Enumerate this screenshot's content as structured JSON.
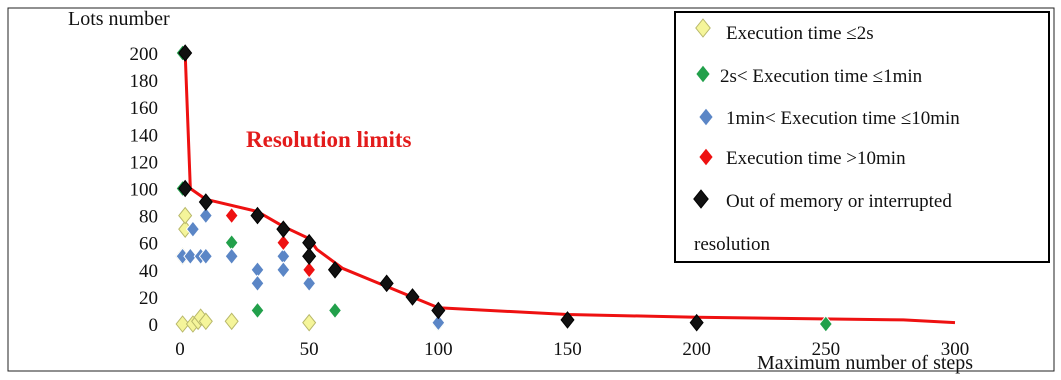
{
  "chart_data": {
    "type": "scatter",
    "title": "",
    "xlabel": "Maximum number of steps",
    "ylabel": "Lots number",
    "xlim": [
      0,
      300
    ],
    "ylim": [
      0,
      200
    ],
    "x_ticks": [
      "0",
      "50",
      "100",
      "150",
      "200",
      "250",
      "300"
    ],
    "y_ticks": [
      "0",
      "20",
      "40",
      "60",
      "80",
      "100",
      "120",
      "140",
      "160",
      "180",
      "200"
    ],
    "grid": false,
    "legend_position": "top-right",
    "annotation": "Resolution limits",
    "legend": [
      {
        "label": "Execution time ≤2s",
        "color": "#f5f59a"
      },
      {
        "label": "2s< Execution time ≤1min",
        "color": "#22a04b"
      },
      {
        "label": "1min< Execution time ≤10min",
        "color": "#5b86c6"
      },
      {
        "label": "Execution time >10min",
        "color": "#ee1111"
      },
      {
        "label": "Out of memory or interrupted",
        "label_cont": "resolution",
        "color": "#111111"
      }
    ],
    "series": [
      {
        "color": "#f5f59a",
        "points": [
          [
            1,
            0
          ],
          [
            1,
            50
          ],
          [
            2,
            70
          ],
          [
            2,
            80
          ],
          [
            5,
            0
          ],
          [
            7,
            2
          ],
          [
            8,
            5
          ],
          [
            10,
            2
          ],
          [
            20,
            2
          ],
          [
            50,
            1
          ]
        ]
      },
      {
        "color": "#22a04b",
        "points": [
          [
            1,
            200
          ],
          [
            1,
            100
          ],
          [
            20,
            60
          ],
          [
            30,
            10
          ],
          [
            60,
            10
          ],
          [
            100,
            0
          ],
          [
            250,
            0
          ]
        ]
      },
      {
        "color": "#5b86c6",
        "points": [
          [
            1,
            50
          ],
          [
            4,
            50
          ],
          [
            5,
            70
          ],
          [
            8,
            50
          ],
          [
            10,
            80
          ],
          [
            10,
            50
          ],
          [
            20,
            50
          ],
          [
            30,
            40
          ],
          [
            30,
            30
          ],
          [
            40,
            50
          ],
          [
            40,
            40
          ],
          [
            50,
            30
          ],
          [
            100,
            1
          ]
        ]
      },
      {
        "color": "#ee1111",
        "points": [
          [
            20,
            80
          ],
          [
            40,
            60
          ],
          [
            50,
            40
          ]
        ]
      },
      {
        "color": "#111111",
        "points": [
          [
            2,
            200
          ],
          [
            2,
            100
          ],
          [
            10,
            90
          ],
          [
            30,
            80
          ],
          [
            40,
            70
          ],
          [
            50,
            60
          ],
          [
            50,
            50
          ],
          [
            60,
            40
          ],
          [
            80,
            30
          ],
          [
            90,
            20
          ],
          [
            100,
            10
          ],
          [
            150,
            3
          ],
          [
            200,
            1
          ]
        ]
      }
    ],
    "limit_line": {
      "color": "#ee1111",
      "points": [
        [
          2,
          200
        ],
        [
          4,
          100
        ],
        [
          10,
          92
        ],
        [
          30,
          83
        ],
        [
          40,
          72
        ],
        [
          50,
          63
        ],
        [
          53,
          55
        ],
        [
          63,
          41
        ],
        [
          100,
          12
        ],
        [
          150,
          7
        ],
        [
          200,
          5
        ],
        [
          280,
          3
        ],
        [
          300,
          1
        ]
      ]
    }
  }
}
